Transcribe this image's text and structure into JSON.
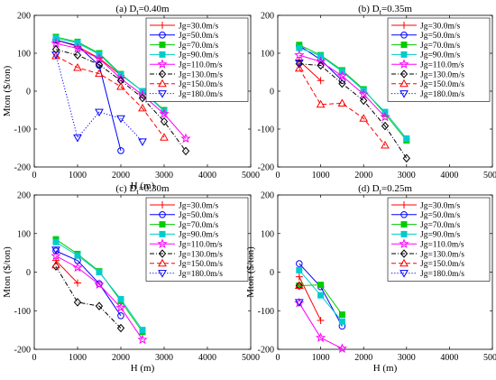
{
  "figure": {
    "panels": [
      {
        "title_prefix": "(a) D",
        "title_sub": "t",
        "title_suffix": "=0.40m"
      },
      {
        "title_prefix": "(b) D",
        "title_sub": "t",
        "title_suffix": "=0.35m"
      },
      {
        "title_prefix": "(c) D",
        "title_sub": "t",
        "title_suffix": "=0.30m"
      },
      {
        "title_prefix": "(d) D",
        "title_sub": "t",
        "title_suffix": "=0.25m"
      }
    ]
  },
  "chart_data": [
    {
      "type": "line",
      "title": "(a) Dt=0.40m",
      "xlabel": "H (m)",
      "ylabel": "Mton ($/ton)",
      "xlim": [
        0,
        5000
      ],
      "ylim": [
        -200,
        200
      ],
      "xticks": [
        0,
        1000,
        2000,
        3000,
        4000,
        5000
      ],
      "yticks": [
        -200,
        -100,
        0,
        100,
        200
      ],
      "legend_position": "top-right",
      "grid": false,
      "series": [
        {
          "name": "Jg=30.0m/s",
          "color": "#ff0000",
          "marker": "plus",
          "dash": "solid",
          "x": [
            500,
            1000,
            1500,
            2000
          ],
          "y": [
            135,
            118,
            87,
            42
          ]
        },
        {
          "name": "Jg=50.0m/s",
          "color": "#0000ff",
          "marker": "circle",
          "dash": "solid",
          "x": [
            500,
            1000,
            1500,
            2000
          ],
          "y": [
            135,
            120,
            68,
            -157
          ]
        },
        {
          "name": "Jg=70.0m/s",
          "color": "#00cc00",
          "marker": "square",
          "dash": "solid",
          "x": [
            500,
            1000,
            1500,
            2000,
            2500,
            3000
          ],
          "y": [
            143,
            130,
            100,
            45,
            0,
            -50
          ]
        },
        {
          "name": "Jg=90.0m/s",
          "color": "#00cccc",
          "marker": "square",
          "dash": "solid",
          "x": [
            500,
            1000,
            1500,
            2000,
            2500,
            3000
          ],
          "y": [
            140,
            127,
            97,
            43,
            0,
            -53
          ]
        },
        {
          "name": "Jg=110.0m/s",
          "color": "#ff00ff",
          "marker": "star",
          "dash": "solid",
          "x": [
            500,
            1000,
            1500,
            2000,
            2500,
            3000,
            3500
          ],
          "y": [
            126,
            113,
            86,
            33,
            -10,
            -60,
            -125
          ]
        },
        {
          "name": "Jg=130.0m/s",
          "color": "#000000",
          "marker": "diamond",
          "dash": "dashdot",
          "x": [
            500,
            1000,
            1500,
            2000,
            2500,
            3000,
            3500
          ],
          "y": [
            110,
            95,
            70,
            28,
            -18,
            -80,
            -158
          ]
        },
        {
          "name": "Jg=150.0m/s",
          "color": "#ff0000",
          "marker": "triangle-up",
          "dash": "dashed",
          "x": [
            500,
            1000,
            1500,
            2000,
            2500,
            3000
          ],
          "y": [
            93,
            62,
            46,
            12,
            -45,
            -122
          ]
        },
        {
          "name": "Jg=180.0m/s",
          "color": "#0000ff",
          "marker": "triangle-down",
          "dash": "dotted",
          "x": [
            500,
            1000,
            1500,
            2000,
            2500
          ],
          "y": [
            96,
            -123,
            -55,
            -72,
            -133
          ]
        }
      ]
    },
    {
      "type": "line",
      "title": "(b) Dt=0.35m",
      "xlabel": "",
      "ylabel": "",
      "xlim": [
        0,
        5000
      ],
      "ylim": [
        -200,
        200
      ],
      "xticks": [
        0,
        1000,
        2000,
        3000,
        4000,
        5000
      ],
      "yticks": [
        -200,
        -100,
        0,
        100,
        200
      ],
      "legend_position": "top-right",
      "grid": false,
      "series": [
        {
          "name": "Jg=30.0m/s",
          "color": "#ff0000",
          "marker": "plus",
          "dash": "solid",
          "x": [
            500,
            1000
          ],
          "y": [
            80,
            28
          ]
        },
        {
          "name": "Jg=50.0m/s",
          "color": "#0000ff",
          "marker": "circle",
          "dash": "solid",
          "x": [
            500,
            1000,
            1500
          ],
          "y": [
            120,
            83,
            28
          ]
        },
        {
          "name": "Jg=70.0m/s",
          "color": "#00cc00",
          "marker": "square",
          "dash": "solid",
          "x": [
            500,
            1000,
            1500,
            2000,
            2500,
            3000
          ],
          "y": [
            122,
            95,
            55,
            5,
            -60,
            -130
          ]
        },
        {
          "name": "Jg=90.0m/s",
          "color": "#00cccc",
          "marker": "square",
          "dash": "solid",
          "x": [
            500,
            1000,
            1500,
            2000,
            2500,
            3000
          ],
          "y": [
            114,
            93,
            52,
            2,
            -55,
            -125
          ]
        },
        {
          "name": "Jg=110.0m/s",
          "color": "#ff00ff",
          "marker": "star",
          "dash": "solid",
          "x": [
            500,
            1000,
            1500,
            2000,
            2500
          ],
          "y": [
            95,
            78,
            40,
            -8,
            -68
          ]
        },
        {
          "name": "Jg=130.0m/s",
          "color": "#000000",
          "marker": "diamond",
          "dash": "dashdot",
          "x": [
            500,
            1000,
            1500,
            2000,
            2500,
            3000
          ],
          "y": [
            72,
            68,
            20,
            -25,
            -92,
            -177
          ]
        },
        {
          "name": "Jg=150.0m/s",
          "color": "#ff0000",
          "marker": "triangle-up",
          "dash": "dashed",
          "x": [
            500,
            1000,
            1500,
            2000,
            2500
          ],
          "y": [
            60,
            -35,
            -32,
            -72,
            -143
          ]
        },
        {
          "name": "Jg=180.0m/s",
          "color": "#0000ff",
          "marker": "triangle-down",
          "dash": "dotted",
          "x": [
            500
          ],
          "y": [
            75
          ]
        }
      ]
    },
    {
      "type": "line",
      "title": "(c) Dt=0.30m",
      "xlabel": "H (m)",
      "ylabel": "Mton ($/ton)",
      "xlim": [
        0,
        5000
      ],
      "ylim": [
        -200,
        200
      ],
      "xticks": [
        0,
        1000,
        2000,
        3000,
        4000,
        5000
      ],
      "yticks": [
        -200,
        -100,
        0,
        100,
        200
      ],
      "legend_position": "top-right",
      "grid": false,
      "series": [
        {
          "name": "Jg=30.0m/s",
          "color": "#ff0000",
          "marker": "plus",
          "dash": "solid",
          "x": [
            500,
            1000
          ],
          "y": [
            30,
            -28
          ]
        },
        {
          "name": "Jg=50.0m/s",
          "color": "#0000ff",
          "marker": "circle",
          "dash": "solid",
          "x": [
            500,
            1000,
            1500,
            2000
          ],
          "y": [
            55,
            30,
            -30,
            -113
          ]
        },
        {
          "name": "Jg=70.0m/s",
          "color": "#00cc00",
          "marker": "square",
          "dash": "solid",
          "x": [
            500,
            1000,
            1500,
            2000,
            2500
          ],
          "y": [
            85,
            47,
            2,
            -75,
            -155
          ]
        },
        {
          "name": "Jg=90.0m/s",
          "color": "#00cccc",
          "marker": "square",
          "dash": "solid",
          "x": [
            500,
            1000,
            1500,
            2000,
            2500
          ],
          "y": [
            78,
            43,
            0,
            -70,
            -150
          ]
        },
        {
          "name": "Jg=110.0m/s",
          "color": "#ff00ff",
          "marker": "star",
          "dash": "solid",
          "x": [
            500,
            1000,
            1500,
            2000,
            2500
          ],
          "y": [
            42,
            12,
            -32,
            -92,
            -175
          ]
        },
        {
          "name": "Jg=130.0m/s",
          "color": "#000000",
          "marker": "diamond",
          "dash": "dashdot",
          "x": [
            500,
            1000,
            1500,
            2000
          ],
          "y": [
            15,
            -78,
            -88,
            -145
          ]
        },
        {
          "name": "Jg=150.0m/s",
          "color": "#ff0000",
          "marker": "triangle-up",
          "dash": "dashed",
          "x": [
            500
          ],
          "y": [
            18
          ]
        },
        {
          "name": "Jg=180.0m/s",
          "color": "#0000ff",
          "marker": "triangle-down",
          "dash": "dotted",
          "x": [
            500
          ],
          "y": [
            58
          ]
        }
      ]
    },
    {
      "type": "line",
      "title": "(d) Dt=0.25m",
      "xlabel": "H (m)",
      "ylabel": "Mton ($/ton)",
      "xlim": [
        0,
        5000
      ],
      "ylim": [
        -200,
        200
      ],
      "xticks": [
        0,
        1000,
        2000,
        3000,
        4000,
        5000
      ],
      "yticks": [
        -200,
        -100,
        0,
        100,
        200
      ],
      "legend_position": "top-right",
      "grid": false,
      "series": [
        {
          "name": "Jg=30.0m/s",
          "color": "#ff0000",
          "marker": "plus",
          "dash": "solid",
          "x": [
            500,
            1000
          ],
          "y": [
            -12,
            -125
          ]
        },
        {
          "name": "Jg=50.0m/s",
          "color": "#0000ff",
          "marker": "circle",
          "dash": "solid",
          "x": [
            500,
            1000,
            1500
          ],
          "y": [
            22,
            -38,
            -140
          ]
        },
        {
          "name": "Jg=70.0m/s",
          "color": "#00cc00",
          "marker": "square",
          "dash": "solid",
          "x": [
            500,
            1000,
            1500
          ],
          "y": [
            -35,
            -33,
            -110
          ]
        },
        {
          "name": "Jg=90.0m/s",
          "color": "#00cccc",
          "marker": "square",
          "dash": "solid",
          "x": [
            500,
            1000,
            1500
          ],
          "y": [
            5,
            -60,
            -128
          ]
        },
        {
          "name": "Jg=110.0m/s",
          "color": "#ff00ff",
          "marker": "star",
          "dash": "solid",
          "x": [
            500,
            1000,
            1500
          ],
          "y": [
            -80,
            -170,
            -198
          ]
        },
        {
          "name": "Jg=130.0m/s",
          "color": "#000000",
          "marker": "diamond",
          "dash": "dashdot",
          "x": [
            500
          ],
          "y": [
            -35
          ]
        },
        {
          "name": "Jg=150.0m/s",
          "color": "#ff0000",
          "marker": "triangle-up",
          "dash": "dashed",
          "x": [
            500
          ],
          "y": [
            -35
          ]
        },
        {
          "name": "Jg=180.0m/s",
          "color": "#0000ff",
          "marker": "triangle-down",
          "dash": "dotted",
          "x": [
            500
          ],
          "y": [
            -78
          ]
        }
      ]
    }
  ]
}
